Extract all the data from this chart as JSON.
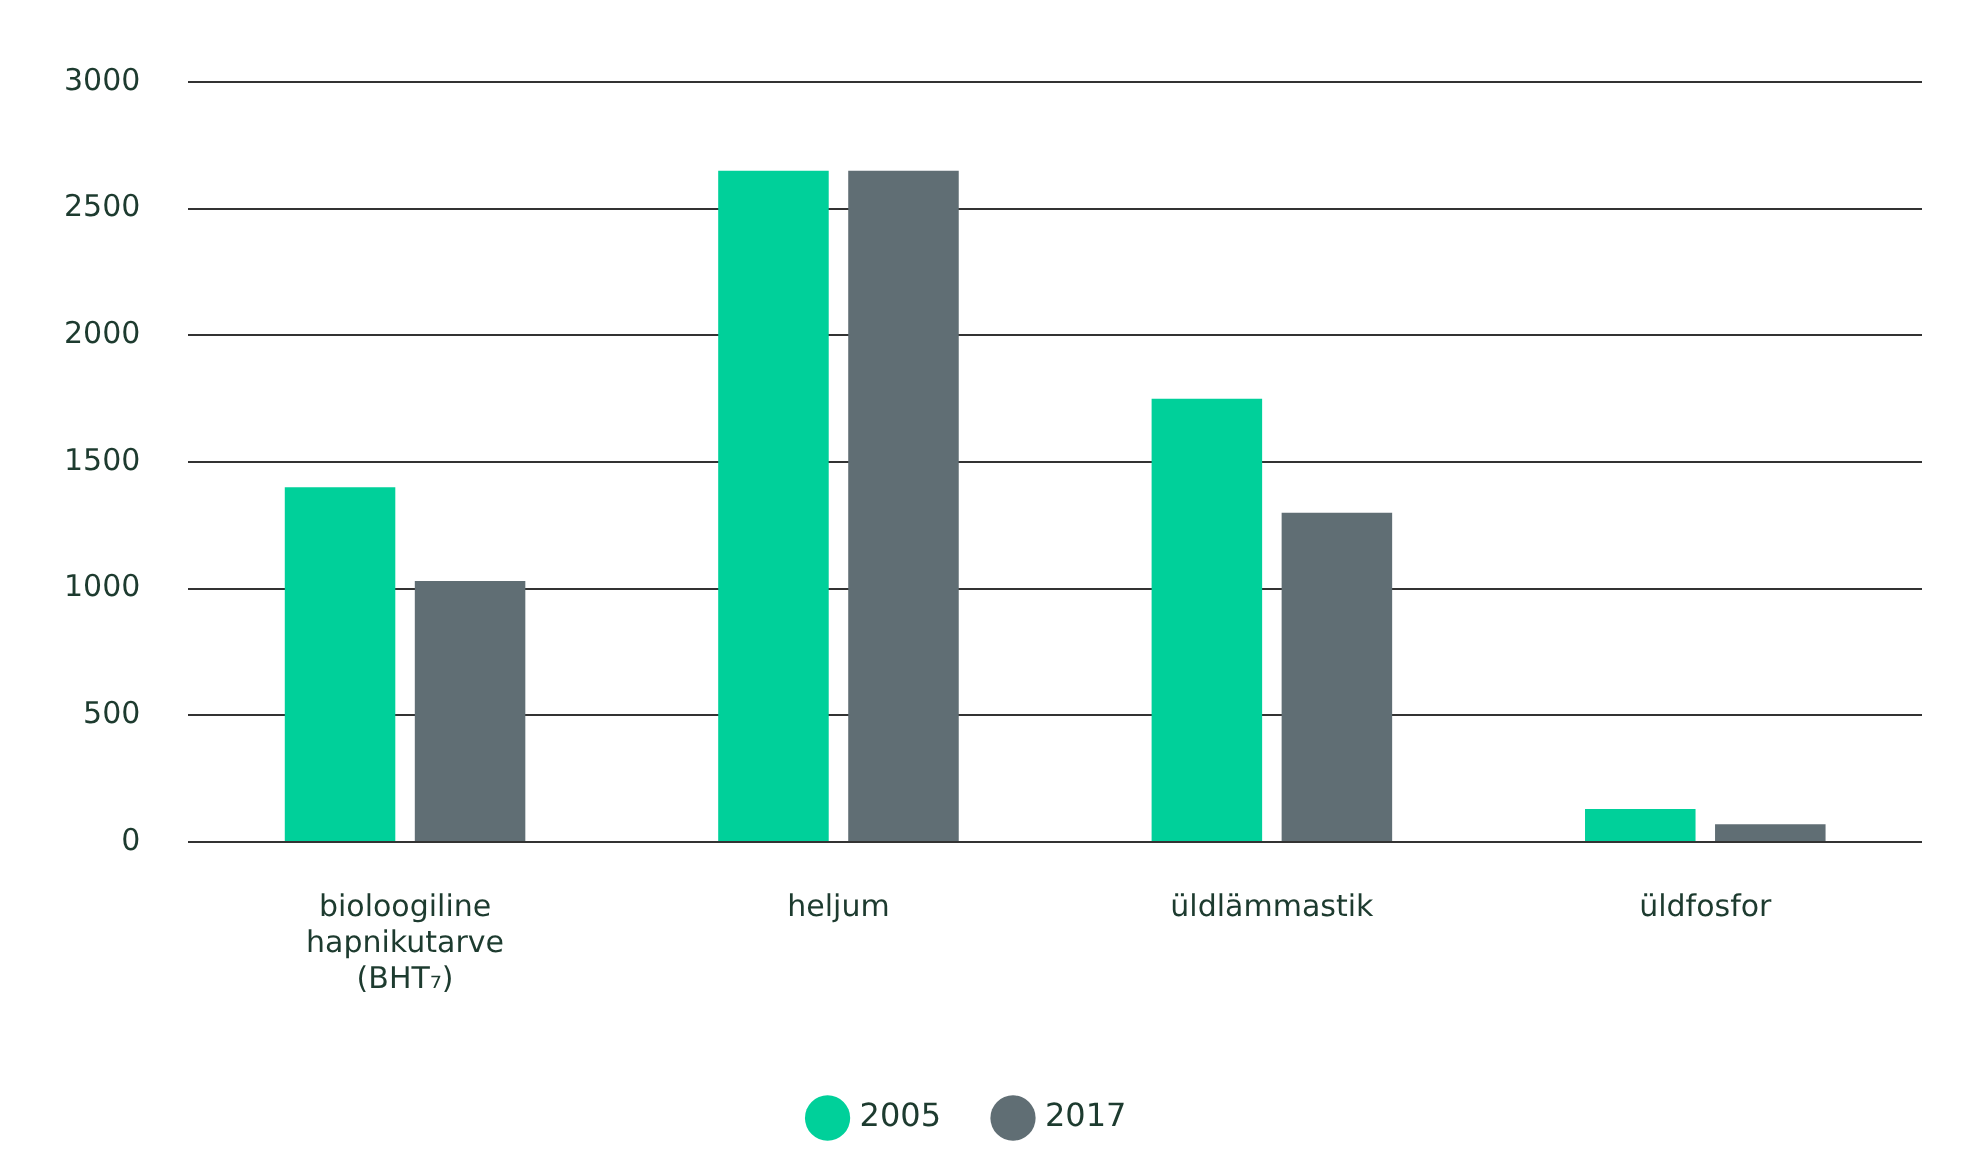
{
  "chart_data": {
    "type": "bar",
    "categories": [
      "bioloogiline hapnikutarve (BHT₇)",
      "heljum",
      "üldlämmastik",
      "üldfosfor"
    ],
    "series": [
      {
        "name": "2005",
        "color": "#00d09a",
        "values": [
          1400,
          2650,
          1750,
          130
        ]
      },
      {
        "name": "2017",
        "color": "#606e74",
        "values": [
          1030,
          2650,
          1300,
          70
        ]
      }
    ],
    "ylim": [
      0,
      3000
    ],
    "yticks": [
      0,
      500,
      1000,
      1500,
      2000,
      2500,
      3000
    ],
    "grid": "y",
    "legend": "bottom"
  }
}
